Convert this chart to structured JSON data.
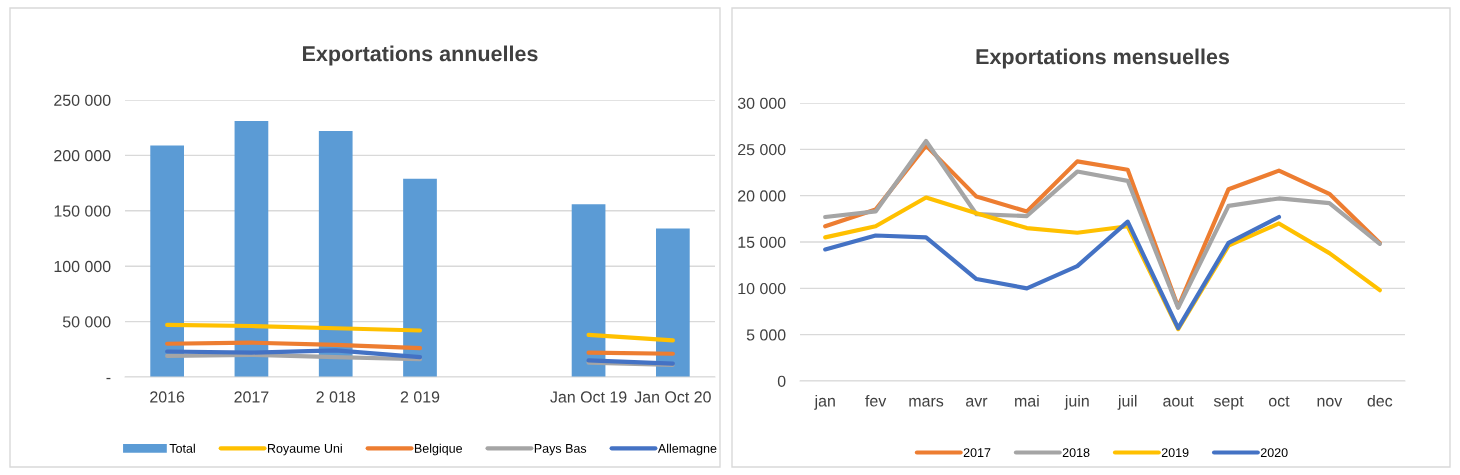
{
  "chart_data": [
    {
      "type": "bar",
      "title": "Exportations annuelles",
      "categories": [
        "2016",
        "2017",
        "2 018",
        "2 019",
        null,
        "Jan Oct 19",
        "Jan Oct 20"
      ],
      "series": [
        {
          "name": "Total",
          "type": "bar",
          "color": "#5b9bd5",
          "values": [
            209000,
            231000,
            222000,
            179000,
            null,
            156000,
            134000
          ]
        },
        {
          "name": "Royaume Uni",
          "type": "line",
          "color": "#ffc000",
          "values": [
            47000,
            46000,
            44000,
            42000,
            null,
            38000,
            33000
          ]
        },
        {
          "name": "Belgique",
          "type": "line",
          "color": "#ed7d31",
          "values": [
            30000,
            31000,
            29000,
            26000,
            null,
            22000,
            21000
          ]
        },
        {
          "name": "Pays Bas",
          "type": "line",
          "color": "#a5a5a5",
          "values": [
            19000,
            20000,
            18000,
            16000,
            null,
            13000,
            11000
          ]
        },
        {
          "name": "Allemagne",
          "type": "line",
          "color": "#4472c4",
          "values": [
            23000,
            22000,
            24000,
            18000,
            null,
            15000,
            12000
          ]
        }
      ],
      "ylim": [
        0,
        250000
      ],
      "yticks": [
        {
          "value": 0,
          "label": "-"
        },
        {
          "value": 50000,
          "label": "50 000"
        },
        {
          "value": 100000,
          "label": "100 000"
        },
        {
          "value": 150000,
          "label": "150 000"
        },
        {
          "value": 200000,
          "label": "200 000"
        },
        {
          "value": 250000,
          "label": "250 000"
        }
      ],
      "grid": "y",
      "legend": "bottom"
    },
    {
      "type": "line",
      "title": "Exportations mensuelles",
      "categories": [
        "jan",
        "fev",
        "mars",
        "avr",
        "mai",
        "juin",
        "juil",
        "aout",
        "sept",
        "oct",
        "nov",
        "dec"
      ],
      "series": [
        {
          "name": "2017",
          "color": "#ed7d31",
          "values": [
            16700,
            18500,
            25400,
            19900,
            18300,
            23700,
            22800,
            8000,
            20700,
            22700,
            20200,
            14900
          ]
        },
        {
          "name": "2018",
          "color": "#a5a5a5",
          "values": [
            17700,
            18300,
            25900,
            18000,
            17800,
            22600,
            21600,
            7900,
            18900,
            19700,
            19200,
            14800
          ]
        },
        {
          "name": "2019",
          "color": "#ffc000",
          "values": [
            15500,
            16700,
            19800,
            18100,
            16500,
            16000,
            16700,
            5600,
            14600,
            17000,
            13800,
            9800
          ]
        },
        {
          "name": "2020",
          "color": "#4472c4",
          "values": [
            14200,
            15700,
            15500,
            11000,
            10000,
            12400,
            17200,
            5700,
            14900,
            17700,
            null,
            null
          ]
        }
      ],
      "ylim": [
        0,
        30000
      ],
      "yticks": [
        0,
        {
          "value": 5000,
          "label": "5 000"
        },
        {
          "value": 10000,
          "label": "10 000"
        },
        {
          "value": 15000,
          "label": "15 000"
        },
        {
          "value": 20000,
          "label": "20 000"
        },
        {
          "value": 25000,
          "label": "25 000"
        },
        {
          "value": 30000,
          "label": "30 000"
        }
      ],
      "grid": "y",
      "legend": "bottom"
    }
  ]
}
